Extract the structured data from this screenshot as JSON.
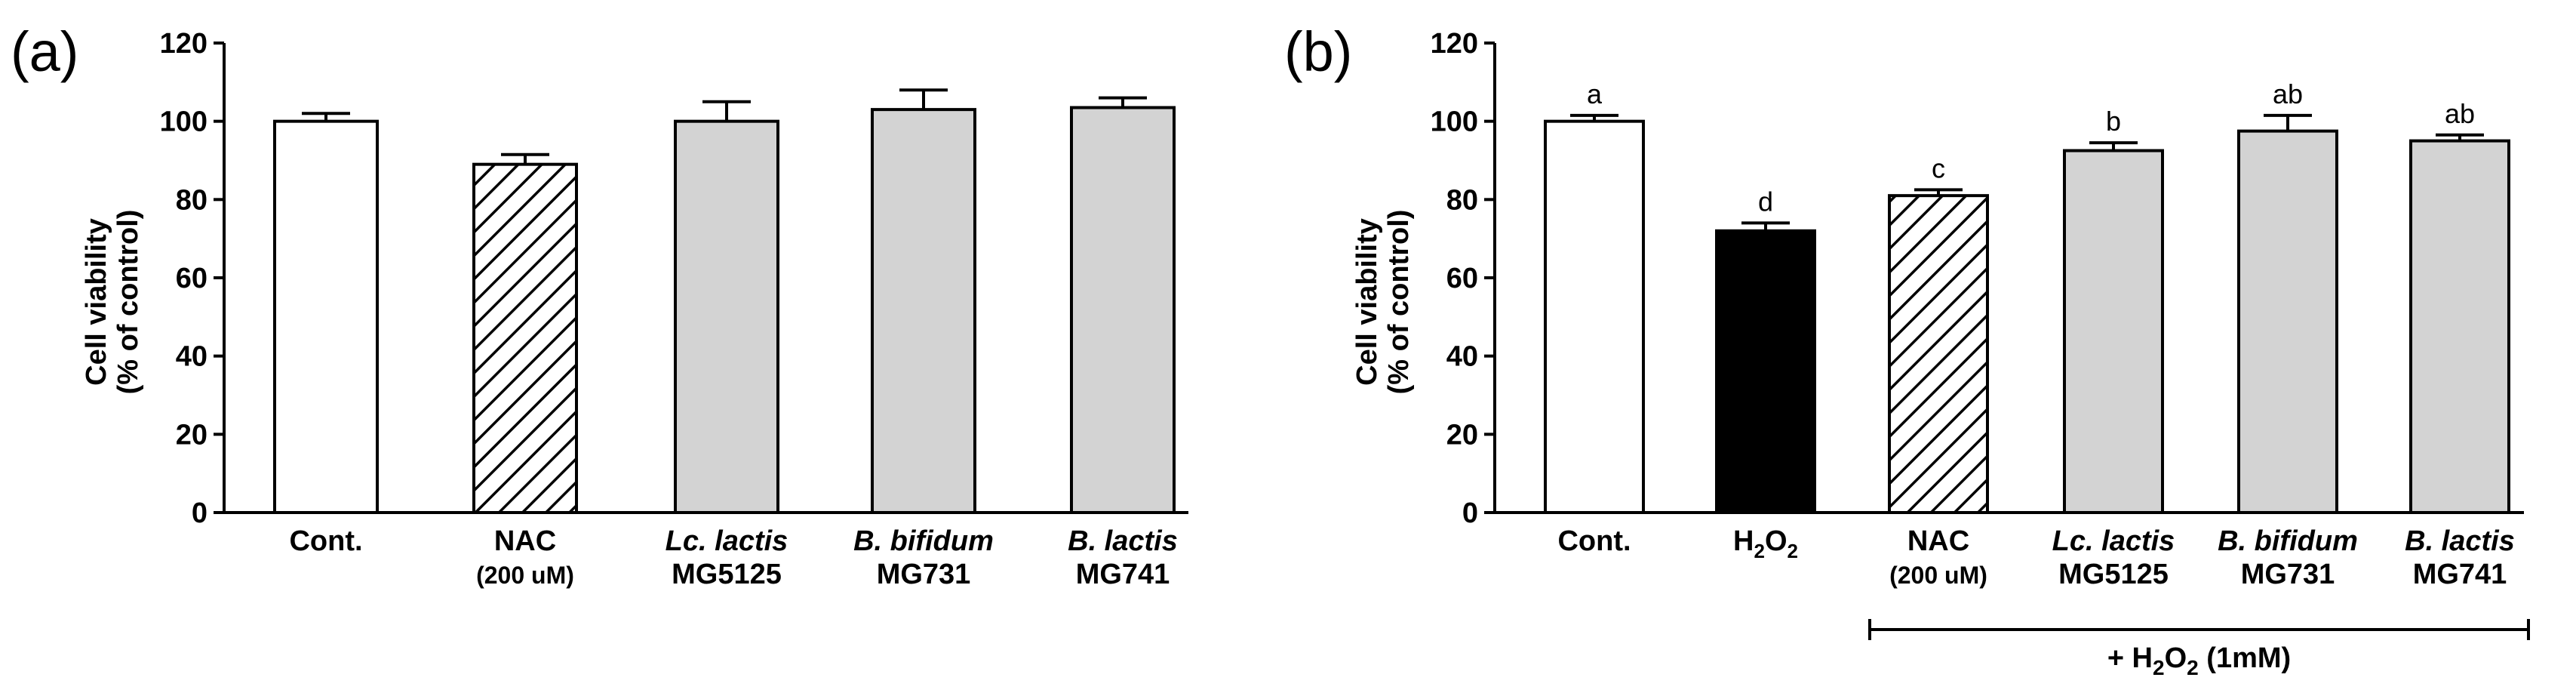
{
  "chart_data": [
    {
      "type": "bar",
      "panel": "(a)",
      "ylabel": [
        "Cell viability",
        "(% of control)"
      ],
      "ylim": [
        0,
        120
      ],
      "yticks": [
        0,
        20,
        40,
        60,
        80,
        100,
        120
      ],
      "categories": [
        {
          "lines": [
            {
              "text": "Cont."
            }
          ]
        },
        {
          "lines": [
            {
              "text": "NAC"
            },
            {
              "text": "(200 uM)",
              "small": true
            }
          ]
        },
        {
          "lines": [
            {
              "text": "Lc. lactis",
              "italic": true
            },
            {
              "text": "MG5125"
            }
          ]
        },
        {
          "lines": [
            {
              "text": "B. bifidum",
              "italic": true
            },
            {
              "text": "MG731"
            }
          ]
        },
        {
          "lines": [
            {
              "text": "B. lactis",
              "italic": true
            },
            {
              "text": "MG741"
            }
          ]
        }
      ],
      "values": [
        100,
        89,
        100,
        103,
        103.5
      ],
      "errors": [
        2,
        2.5,
        5,
        5,
        2.5
      ],
      "fills": [
        "white",
        "hatch",
        "#d3d3d3",
        "#d3d3d3",
        "#d3d3d3"
      ],
      "grid": false,
      "legend": "none"
    },
    {
      "type": "bar",
      "panel": "(b)",
      "ylabel": [
        "Cell viability",
        "(% of control)"
      ],
      "ylim": [
        0,
        120
      ],
      "yticks": [
        0,
        20,
        40,
        60,
        80,
        100,
        120
      ],
      "categories": [
        {
          "lines": [
            {
              "text": "Cont."
            }
          ]
        },
        {
          "lines": [
            {
              "text": "H",
              "sub": "2",
              "text2": "O",
              "sub2": "2"
            }
          ]
        },
        {
          "lines": [
            {
              "text": "NAC"
            },
            {
              "text": "(200 uM)",
              "small": true
            }
          ]
        },
        {
          "lines": [
            {
              "text": "Lc. lactis",
              "italic": true
            },
            {
              "text": "MG5125"
            }
          ]
        },
        {
          "lines": [
            {
              "text": "B. bifidum",
              "italic": true
            },
            {
              "text": "MG731"
            }
          ]
        },
        {
          "lines": [
            {
              "text": "B. lactis",
              "italic": true
            },
            {
              "text": "MG741"
            }
          ]
        }
      ],
      "values": [
        100,
        72,
        81,
        92.5,
        97.5,
        95
      ],
      "errors": [
        1.5,
        2,
        1.5,
        2,
        4,
        1.5
      ],
      "sig_labels": [
        "a",
        "d",
        "c",
        "b",
        "ab",
        "ab"
      ],
      "fills": [
        "white",
        "black",
        "hatch",
        "#d3d3d3",
        "#d3d3d3",
        "#d3d3d3"
      ],
      "bracket": {
        "from_index": 2,
        "to_index": 5,
        "text": "+ H",
        "sub": "2",
        "text2": "O",
        "sub2": "2",
        "text3": " (1mM)"
      },
      "grid": false,
      "legend": "none"
    }
  ]
}
